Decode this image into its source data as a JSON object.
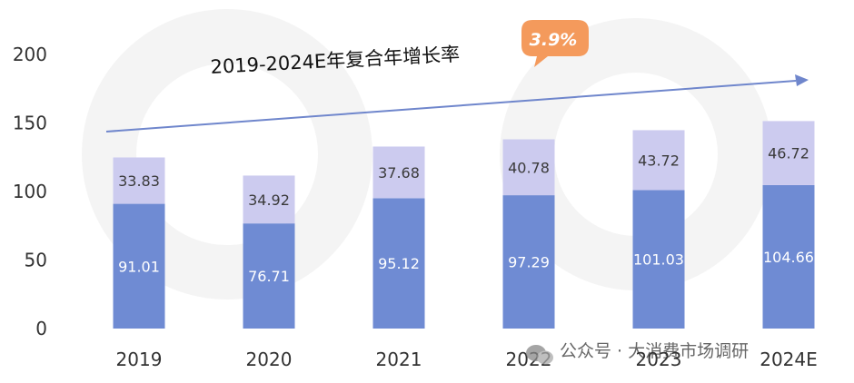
{
  "colors": {
    "bottom": "#6F8BD3",
    "top": "#CCCBEF",
    "arrow": "#6F86CC",
    "badge": "#F49A5C"
  },
  "annotation": {
    "text": "2019-2024E年复合年增长率",
    "cagr": "3.9%"
  },
  "watermark": {
    "text": "公众号 · 大消费市场调研",
    "icon": "wechat-icon"
  },
  "chart_data": {
    "type": "bar",
    "stacked": true,
    "categories": [
      "2019",
      "2020",
      "2021",
      "2022",
      "2023",
      "2024E"
    ],
    "series": [
      {
        "values": [
          91.01,
          76.71,
          95.12,
          97.29,
          101.03,
          104.66
        ]
      },
      {
        "values": [
          33.83,
          34.92,
          37.68,
          40.78,
          43.72,
          46.72
        ]
      }
    ],
    "data_labels": {
      "bottom": [
        "91.01",
        "76.71",
        "95.12",
        "97.29",
        "101.03",
        "104.66"
      ],
      "top": [
        "33.83",
        "34.92",
        "37.68",
        "40.78",
        "43.72",
        "46.72"
      ]
    },
    "yticks": [
      "0",
      "50",
      "100",
      "150",
      "200"
    ],
    "ylim": [
      0,
      200
    ],
    "grid": false,
    "legend": "none"
  }
}
